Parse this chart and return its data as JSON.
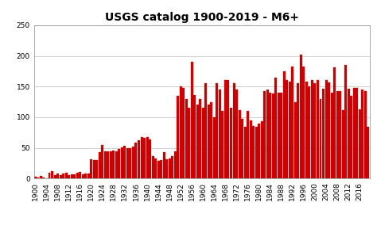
{
  "title": "USGS catalog 1900-2019 - M6+",
  "bar_color": "#cc0000",
  "edge_color": "#cc0000",
  "background_color": "#ffffff",
  "ylim": [
    0,
    250
  ],
  "yticks": [
    0,
    50,
    100,
    150,
    200,
    250
  ],
  "grid_color": "#c8c8c8",
  "years": [
    1900,
    1901,
    1902,
    1903,
    1904,
    1905,
    1906,
    1907,
    1908,
    1909,
    1910,
    1911,
    1912,
    1913,
    1914,
    1915,
    1916,
    1917,
    1918,
    1919,
    1920,
    1921,
    1922,
    1923,
    1924,
    1925,
    1926,
    1927,
    1928,
    1929,
    1930,
    1931,
    1932,
    1933,
    1934,
    1935,
    1936,
    1937,
    1938,
    1939,
    1940,
    1941,
    1942,
    1943,
    1944,
    1945,
    1946,
    1947,
    1948,
    1949,
    1950,
    1951,
    1952,
    1953,
    1954,
    1955,
    1956,
    1957,
    1958,
    1959,
    1960,
    1961,
    1962,
    1963,
    1964,
    1965,
    1966,
    1967,
    1968,
    1969,
    1970,
    1971,
    1972,
    1973,
    1974,
    1975,
    1976,
    1977,
    1978,
    1979,
    1980,
    1981,
    1982,
    1983,
    1984,
    1985,
    1986,
    1987,
    1988,
    1989,
    1990,
    1991,
    1992,
    1993,
    1994,
    1995,
    1996,
    1997,
    1998,
    1999,
    2000,
    2001,
    2002,
    2003,
    2004,
    2005,
    2006,
    2007,
    2008,
    2009,
    2010,
    2011,
    2012,
    2013,
    2014,
    2015,
    2016,
    2017,
    2018,
    2019
  ],
  "values": [
    3,
    2,
    4,
    2,
    1,
    10,
    12,
    6,
    8,
    6,
    8,
    10,
    6,
    7,
    7,
    9,
    11,
    7,
    8,
    8,
    31,
    30,
    30,
    43,
    55,
    45,
    44,
    45,
    46,
    44,
    48,
    51,
    54,
    50,
    49,
    52,
    59,
    63,
    68,
    66,
    68,
    64,
    37,
    33,
    29,
    30,
    43,
    31,
    33,
    37,
    45,
    135,
    150,
    148,
    130,
    115,
    190,
    136,
    120,
    130,
    115,
    155,
    120,
    125,
    100,
    155,
    145,
    110,
    160,
    160,
    115,
    155,
    145,
    112,
    97,
    85,
    110,
    95,
    86,
    85,
    90,
    93,
    142,
    145,
    140,
    139,
    165,
    140,
    140,
    175,
    160,
    158,
    182,
    125,
    155,
    202,
    182,
    158,
    150,
    160,
    155,
    160,
    130,
    147,
    160,
    157,
    140,
    181,
    143,
    142,
    111,
    185,
    147,
    135,
    148,
    148,
    113,
    145,
    142,
    85
  ],
  "xtick_years": [
    1900,
    1904,
    1908,
    1912,
    1916,
    1920,
    1924,
    1928,
    1932,
    1936,
    1940,
    1944,
    1948,
    1952,
    1956,
    1960,
    1964,
    1968,
    1972,
    1976,
    1980,
    1984,
    1988,
    1992,
    1996,
    2000,
    2004,
    2008,
    2012,
    2016
  ],
  "title_fontsize": 10,
  "tick_fontsize": 6.5
}
